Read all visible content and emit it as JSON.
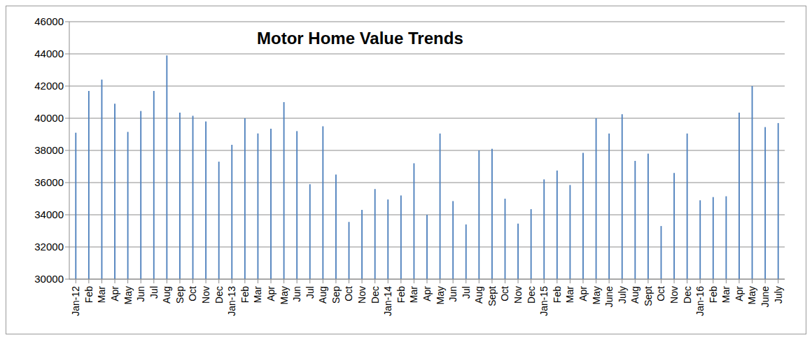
{
  "chart_data": {
    "type": "bar",
    "title": "Motor Home Value Trends",
    "categories": [
      "Jan-12",
      "Feb",
      "Mar",
      "Apr",
      "May",
      "Jun",
      "Jul",
      "Aug",
      "Sep",
      "Oct",
      "Nov",
      "Dec",
      "Jan-13",
      "Feb",
      "Mar",
      "Apr",
      "May",
      "Jun",
      "Jul",
      "Aug",
      "Sep",
      "Oct",
      "Nov",
      "Dec",
      "Jan-14",
      "Feb",
      "Mar",
      "Apr",
      "May",
      "Jun",
      "Jul",
      "Aug",
      "Sept",
      "Oct",
      "Nov",
      "Dec",
      "Jan-15",
      "Feb",
      "Mar",
      "Apr",
      "May",
      "June",
      "July",
      "Aug",
      "Sept",
      "Oct",
      "Nov",
      "Dec",
      "Jan-16",
      "Feb",
      "Mar",
      "Apr",
      "May",
      "June",
      "July"
    ],
    "values": [
      39100,
      41700,
      42400,
      40900,
      39150,
      40450,
      41700,
      43900,
      40350,
      40150,
      39800,
      37300,
      38350,
      40000,
      39050,
      39350,
      41000,
      39200,
      35900,
      39500,
      36500,
      33550,
      34300,
      35600,
      34950,
      35200,
      37200,
      34000,
      39050,
      34850,
      33400,
      38000,
      38100,
      35000,
      33450,
      34350,
      36200,
      36750,
      35850,
      37850,
      40000,
      39050,
      40250,
      37350,
      37800,
      33300,
      36600,
      39050,
      34900,
      35100,
      35150,
      40350,
      42000,
      39450,
      39700
    ],
    "color": "#4f81bd",
    "ylim": [
      30000,
      46000
    ],
    "yticks": [
      30000,
      32000,
      34000,
      36000,
      38000,
      40000,
      42000,
      44000,
      46000
    ],
    "grid": true
  }
}
